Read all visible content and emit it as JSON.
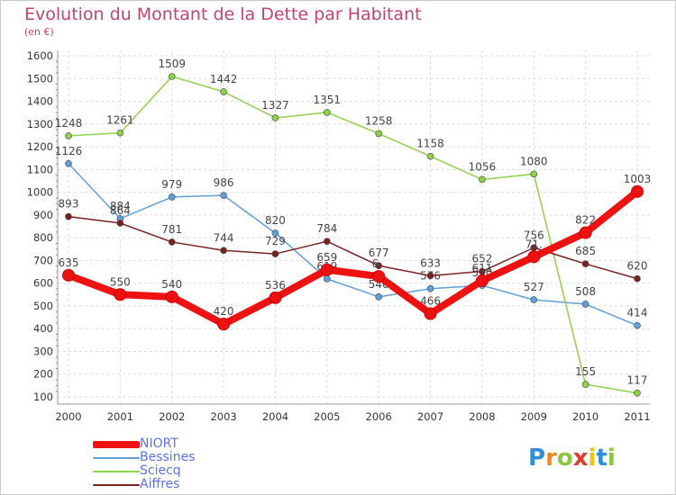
{
  "title": "Evolution du Montant de la Dette par Habitant",
  "unit": "(en €)",
  "logo_text": "Proxiti",
  "chart_data": {
    "type": "line",
    "title": "Evolution du Montant de la Dette par Habitant",
    "subtitle": "(en €)",
    "x": [
      "2000",
      "2001",
      "2002",
      "2003",
      "2004",
      "2005",
      "2006",
      "2007",
      "2008",
      "2009",
      "2010",
      "2011"
    ],
    "ylim": [
      100,
      1600
    ],
    "yticks": [
      100,
      200,
      300,
      400,
      500,
      600,
      700,
      800,
      900,
      1000,
      1100,
      1200,
      1300,
      1400,
      1500,
      1600
    ],
    "grid": true,
    "legend": "bottom-left",
    "series": [
      {
        "name": "NIORT",
        "color": "#ee1111",
        "width": 8,
        "values": [
          635,
          550,
          540,
          420,
          536,
          659,
          630,
          466,
          611,
          716,
          822,
          1003
        ],
        "labels": [
          "635",
          "550",
          "540",
          "420",
          "536",
          "659",
          "6..",
          "466",
          "611",
          "71.",
          "822",
          "1003"
        ]
      },
      {
        "name": "Bessines",
        "color": "#5fa0d8",
        "width": 1.5,
        "values": [
          1126,
          884,
          979,
          986,
          820,
          619,
          540,
          576,
          590,
          527,
          508,
          414
        ],
        "labels": [
          "1126",
          "884",
          "979",
          "986",
          "820",
          "619",
          "540",
          "576",
          "590",
          "527",
          "508",
          "414"
        ]
      },
      {
        "name": "Sciecq",
        "color": "#8fd14a",
        "width": 1.5,
        "values": [
          1248,
          1261,
          1509,
          1442,
          1327,
          1351,
          1258,
          1158,
          1056,
          1080,
          155,
          117
        ],
        "labels": [
          "1248",
          "1261",
          "1509",
          "1442",
          "1327",
          "1351",
          "1258",
          "1158",
          "1056",
          "1080",
          "155",
          "117"
        ]
      },
      {
        "name": "Aiffres",
        "color": "#7a2222",
        "width": 1.5,
        "values": [
          893,
          864,
          781,
          744,
          729,
          784,
          677,
          633,
          652,
          756,
          685,
          620
        ],
        "labels": [
          "893",
          "864",
          "781",
          "744",
          "729",
          "784",
          "677",
          "633",
          "652",
          "756",
          "685",
          "620"
        ]
      }
    ]
  }
}
